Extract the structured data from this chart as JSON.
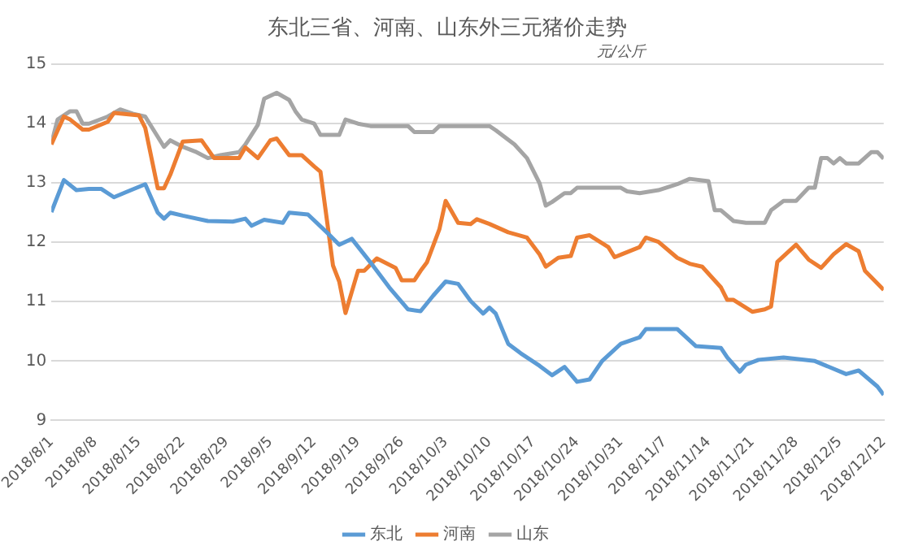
{
  "chart_data": {
    "type": "line",
    "title": "东北三省、河南、山东外三元猪价走势",
    "annotations": [
      "元/公斤"
    ],
    "xlim": [
      "2018-08-01",
      "2018-12-12"
    ],
    "xticks": [
      {
        "value": "2018-08-01",
        "label": "2018/8/1"
      },
      {
        "value": "2018-08-08",
        "label": "2018/8/8"
      },
      {
        "value": "2018-08-15",
        "label": "2018/8/15"
      },
      {
        "value": "2018-08-22",
        "label": "2018/8/22"
      },
      {
        "value": "2018-08-29",
        "label": "2018/8/29"
      },
      {
        "value": "2018-09-05",
        "label": "2018/9/5"
      },
      {
        "value": "2018-09-12",
        "label": "2018/9/12"
      },
      {
        "value": "2018-09-19",
        "label": "2018/9/19"
      },
      {
        "value": "2018-09-26",
        "label": "2018/9/26"
      },
      {
        "value": "2018-10-03",
        "label": "2018/10/3"
      },
      {
        "value": "2018-10-10",
        "label": "2018/10/10"
      },
      {
        "value": "2018-10-17",
        "label": "2018/10/17"
      },
      {
        "value": "2018-10-24",
        "label": "2018/10/24"
      },
      {
        "value": "2018-10-31",
        "label": "2018/10/31"
      },
      {
        "value": "2018-11-07",
        "label": "2018/11/7"
      },
      {
        "value": "2018-11-14",
        "label": "2018/11/14"
      },
      {
        "value": "2018-11-21",
        "label": "2018/11/21"
      },
      {
        "value": "2018-11-28",
        "label": "2018/11/28"
      },
      {
        "value": "2018-12-05",
        "label": "2018/12/5"
      },
      {
        "value": "2018-12-12",
        "label": "2018/12/12"
      }
    ],
    "ylim": [
      9,
      15
    ],
    "yticks": [
      9,
      10,
      11,
      12,
      13,
      14,
      15
    ],
    "grid": "y",
    "legend": "bottom",
    "marker": "none",
    "line_style": "solid",
    "series": [
      {
        "name": "东北",
        "color": "#5b9bd5",
        "x": [
          "2018-08-01",
          "2018-08-03",
          "2018-08-05",
          "2018-08-07",
          "2018-08-09",
          "2018-08-11",
          "2018-08-13",
          "2018-08-16",
          "2018-08-18",
          "2018-08-19",
          "2018-08-20",
          "2018-08-22",
          "2018-08-26",
          "2018-08-30",
          "2018-09-01",
          "2018-09-02",
          "2018-09-04",
          "2018-09-07",
          "2018-09-08",
          "2018-09-11",
          "2018-09-14",
          "2018-09-16",
          "2018-09-18",
          "2018-09-21",
          "2018-09-24",
          "2018-09-27",
          "2018-09-29",
          "2018-10-01",
          "2018-10-03",
          "2018-10-05",
          "2018-10-07",
          "2018-10-09",
          "2018-10-10",
          "2018-10-11",
          "2018-10-13",
          "2018-10-15",
          "2018-10-18",
          "2018-10-20",
          "2018-10-22",
          "2018-10-24",
          "2018-10-26",
          "2018-10-28",
          "2018-10-31",
          "2018-11-03",
          "2018-11-04",
          "2018-11-09",
          "2018-11-12",
          "2018-11-16",
          "2018-11-17",
          "2018-11-19",
          "2018-11-20",
          "2018-11-22",
          "2018-11-26",
          "2018-12-01",
          "2018-12-06",
          "2018-12-08",
          "2018-12-11",
          "2018-12-12"
        ],
        "values": [
          12.51,
          13.05,
          12.88,
          12.9,
          12.9,
          12.76,
          12.85,
          12.98,
          12.5,
          12.4,
          12.5,
          12.45,
          12.36,
          12.35,
          12.4,
          12.28,
          12.38,
          12.33,
          12.5,
          12.47,
          12.17,
          11.96,
          12.06,
          11.66,
          11.24,
          10.87,
          10.84,
          11.1,
          11.34,
          11.3,
          11.01,
          10.8,
          10.9,
          10.8,
          10.29,
          10.13,
          9.92,
          9.76,
          9.9,
          9.65,
          9.69,
          10.0,
          10.29,
          10.4,
          10.54,
          10.54,
          10.25,
          10.22,
          10.06,
          9.82,
          9.94,
          10.02,
          10.06,
          10.0,
          9.78,
          9.84,
          9.57,
          9.43
        ]
      },
      {
        "name": "河南",
        "color": "#ed7d31",
        "x": [
          "2018-08-01",
          "2018-08-03",
          "2018-08-04",
          "2018-08-06",
          "2018-08-07",
          "2018-08-10",
          "2018-08-11",
          "2018-08-15",
          "2018-08-16",
          "2018-08-18",
          "2018-08-19",
          "2018-08-20",
          "2018-08-22",
          "2018-08-25",
          "2018-08-27",
          "2018-08-31",
          "2018-09-01",
          "2018-09-03",
          "2018-09-05",
          "2018-09-06",
          "2018-09-08",
          "2018-09-10",
          "2018-09-12",
          "2018-09-13",
          "2018-09-15",
          "2018-09-16",
          "2018-09-17",
          "2018-09-19",
          "2018-09-20",
          "2018-09-22",
          "2018-09-25",
          "2018-09-26",
          "2018-09-28",
          "2018-09-29",
          "2018-09-30",
          "2018-10-02",
          "2018-10-03",
          "2018-10-05",
          "2018-10-07",
          "2018-10-08",
          "2018-10-10",
          "2018-10-13",
          "2018-10-16",
          "2018-10-18",
          "2018-10-19",
          "2018-10-21",
          "2018-10-23",
          "2018-10-24",
          "2018-10-26",
          "2018-10-29",
          "2018-10-30",
          "2018-11-03",
          "2018-11-04",
          "2018-11-06",
          "2018-11-09",
          "2018-11-11",
          "2018-11-13",
          "2018-11-16",
          "2018-11-17",
          "2018-11-18",
          "2018-11-21",
          "2018-11-23",
          "2018-11-24",
          "2018-11-25",
          "2018-11-28",
          "2018-11-30",
          "2018-12-02",
          "2018-12-04",
          "2018-12-06",
          "2018-12-08",
          "2018-12-09",
          "2018-12-12"
        ],
        "values": [
          13.65,
          14.12,
          14.07,
          13.9,
          13.9,
          14.03,
          14.18,
          14.14,
          13.93,
          12.91,
          12.91,
          13.14,
          13.7,
          13.72,
          13.42,
          13.42,
          13.6,
          13.42,
          13.72,
          13.75,
          13.47,
          13.47,
          13.28,
          13.19,
          11.61,
          11.34,
          10.81,
          11.52,
          11.52,
          11.73,
          11.57,
          11.36,
          11.36,
          11.52,
          11.66,
          12.22,
          12.7,
          12.33,
          12.31,
          12.39,
          12.31,
          12.17,
          12.08,
          11.8,
          11.59,
          11.74,
          11.77,
          12.08,
          12.12,
          11.92,
          11.75,
          11.92,
          12.08,
          12.01,
          11.74,
          11.64,
          11.59,
          11.24,
          11.03,
          11.03,
          10.83,
          10.87,
          10.92,
          11.67,
          11.96,
          11.71,
          11.57,
          11.8,
          11.97,
          11.85,
          11.52,
          11.2
        ]
      },
      {
        "name": "山东",
        "color": "#a5a5a5",
        "x": [
          "2018-08-01",
          "2018-08-02",
          "2018-08-04",
          "2018-08-05",
          "2018-08-06",
          "2018-08-07",
          "2018-08-10",
          "2018-08-12",
          "2018-08-14",
          "2018-08-16",
          "2018-08-19",
          "2018-08-20",
          "2018-08-22",
          "2018-08-24",
          "2018-08-26",
          "2018-08-28",
          "2018-08-31",
          "2018-09-01",
          "2018-09-03",
          "2018-09-04",
          "2018-09-06",
          "2018-09-08",
          "2018-09-09",
          "2018-09-10",
          "2018-09-12",
          "2018-09-13",
          "2018-09-16",
          "2018-09-17",
          "2018-09-19",
          "2018-09-21",
          "2018-09-27",
          "2018-09-28",
          "2018-10-01",
          "2018-10-02",
          "2018-10-10",
          "2018-10-11",
          "2018-10-14",
          "2018-10-16",
          "2018-10-18",
          "2018-10-19",
          "2018-10-20",
          "2018-10-22",
          "2018-10-23",
          "2018-10-24",
          "2018-10-31",
          "2018-11-01",
          "2018-11-03",
          "2018-11-06",
          "2018-11-09",
          "2018-11-11",
          "2018-11-14",
          "2018-11-15",
          "2018-11-16",
          "2018-11-18",
          "2018-11-20",
          "2018-11-23",
          "2018-11-24",
          "2018-11-26",
          "2018-11-28",
          "2018-11-30",
          "2018-12-01",
          "2018-12-02",
          "2018-12-03",
          "2018-12-04",
          "2018-12-05",
          "2018-12-06",
          "2018-12-08",
          "2018-12-10",
          "2018-12-11",
          "2018-12-12"
        ],
        "values": [
          13.67,
          14.07,
          14.21,
          14.21,
          14.0,
          14.0,
          14.12,
          14.24,
          14.17,
          14.12,
          13.61,
          13.72,
          13.61,
          13.53,
          13.42,
          13.47,
          13.52,
          13.65,
          13.98,
          14.42,
          14.52,
          14.4,
          14.21,
          14.07,
          14.0,
          13.81,
          13.81,
          14.07,
          14.0,
          13.96,
          13.96,
          13.86,
          13.86,
          13.96,
          13.96,
          13.89,
          13.65,
          13.42,
          13.0,
          12.62,
          12.68,
          12.83,
          12.83,
          12.92,
          12.92,
          12.86,
          12.83,
          12.88,
          12.98,
          13.07,
          13.03,
          12.54,
          12.54,
          12.36,
          12.33,
          12.33,
          12.54,
          12.7,
          12.7,
          12.92,
          12.92,
          13.42,
          13.42,
          13.33,
          13.42,
          13.33,
          13.33,
          13.52,
          13.52,
          13.41
        ]
      }
    ]
  }
}
